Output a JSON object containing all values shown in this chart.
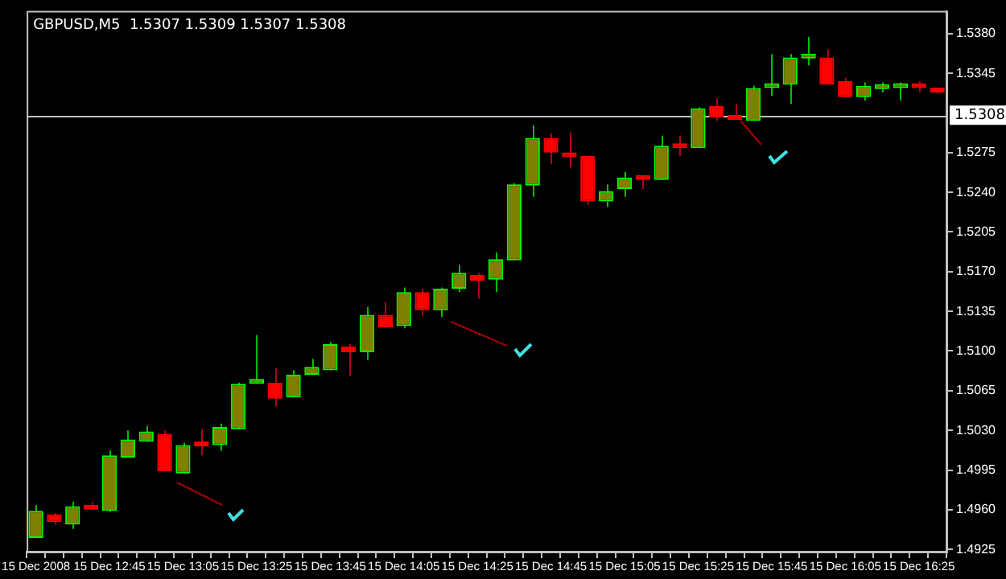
{
  "chart_data": {
    "type": "candlestick",
    "title": "GBPUSD,M5  1.5307 1.5309 1.5307 1.5308",
    "categories": [
      "15 Dec 2008",
      null,
      null,
      null,
      "15 Dec 12:45",
      null,
      null,
      null,
      "15 Dec 13:05",
      null,
      null,
      null,
      "15 Dec 13:25",
      null,
      null,
      null,
      "15 Dec 13:45",
      null,
      null,
      null,
      "15 Dec 14:05",
      null,
      null,
      null,
      "15 Dec 14:25",
      null,
      null,
      null,
      "15 Dec 14:45",
      null,
      null,
      null,
      "15 Dec 15:05",
      null,
      null,
      null,
      "15 Dec 15:25",
      null,
      null,
      null,
      "15 Dec 15:45",
      null,
      null,
      null,
      "15 Dec 16:05",
      null,
      null,
      null,
      "15 Dec 16:25",
      null
    ],
    "ohlc": [
      [
        1.4935,
        1.4964,
        1.4935,
        1.4959
      ],
      [
        1.4956,
        1.4957,
        1.4947,
        1.4949
      ],
      [
        1.4947,
        1.4967,
        1.4943,
        1.4963
      ],
      [
        1.4964,
        1.4967,
        1.496,
        1.496
      ],
      [
        1.4959,
        1.5012,
        1.4958,
        1.5008
      ],
      [
        1.5006,
        1.503,
        1.5006,
        1.5022
      ],
      [
        1.502,
        1.5034,
        1.502,
        1.5029
      ],
      [
        1.5027,
        1.503,
        1.4994,
        1.4994
      ],
      [
        1.4992,
        1.5019,
        1.4992,
        1.5017
      ],
      [
        1.5019,
        1.5031,
        1.5008,
        1.5016
      ],
      [
        1.5017,
        1.5036,
        1.5012,
        1.5033
      ],
      [
        1.5031,
        1.5072,
        1.5031,
        1.5071
      ],
      [
        1.5071,
        1.5114,
        1.5071,
        1.5073
      ],
      [
        1.5072,
        1.5085,
        1.5051,
        1.5058
      ],
      [
        1.5059,
        1.5083,
        1.5059,
        1.5079
      ],
      [
        1.5079,
        1.5093,
        1.5079,
        1.5086
      ],
      [
        1.5083,
        1.5108,
        1.5083,
        1.5106
      ],
      [
        1.5104,
        1.5106,
        1.5078,
        1.5099
      ],
      [
        1.5099,
        1.5139,
        1.5092,
        1.5132
      ],
      [
        1.5132,
        1.5143,
        1.512,
        1.5121
      ],
      [
        1.5122,
        1.5156,
        1.512,
        1.5152
      ],
      [
        1.5152,
        1.5155,
        1.5131,
        1.5136
      ],
      [
        1.5136,
        1.5156,
        1.513,
        1.5155
      ],
      [
        1.5155,
        1.5176,
        1.5152,
        1.5169
      ],
      [
        1.5167,
        1.5169,
        1.5146,
        1.5162
      ],
      [
        1.5163,
        1.5187,
        1.5152,
        1.5181
      ],
      [
        1.518,
        1.5248,
        1.518,
        1.5247
      ],
      [
        1.5246,
        1.5299,
        1.5236,
        1.5288
      ],
      [
        1.5288,
        1.5292,
        1.5265,
        1.5275
      ],
      [
        1.5275,
        1.5293,
        1.5262,
        1.5271
      ],
      [
        1.5272,
        1.5272,
        1.5229,
        1.5232
      ],
      [
        1.5232,
        1.5247,
        1.5227,
        1.5241
      ],
      [
        1.5243,
        1.5258,
        1.5236,
        1.5253
      ],
      [
        1.5253,
        1.5255,
        1.5243,
        1.5251
      ],
      [
        1.5251,
        1.529,
        1.5251,
        1.5281
      ],
      [
        1.5282,
        1.529,
        1.5272,
        1.5279
      ],
      [
        1.5279,
        1.5315,
        1.5279,
        1.5314
      ],
      [
        1.5316,
        1.5323,
        1.5303,
        1.5306
      ],
      [
        1.5306,
        1.5318,
        1.5304,
        1.5304
      ],
      [
        1.5303,
        1.5334,
        1.5303,
        1.5332
      ],
      [
        1.5332,
        1.5362,
        1.5325,
        1.5335
      ],
      [
        1.5335,
        1.5362,
        1.5318,
        1.5359
      ],
      [
        1.5358,
        1.5377,
        1.5352,
        1.536
      ],
      [
        1.5359,
        1.5366,
        1.5335,
        1.5335
      ],
      [
        1.5338,
        1.5341,
        1.5324,
        1.5324
      ],
      [
        1.5324,
        1.5337,
        1.5321,
        1.5334
      ],
      [
        1.5331,
        1.5337,
        1.5328,
        1.5334
      ],
      [
        1.5332,
        1.5337,
        1.5321,
        1.5335
      ],
      [
        1.5334,
        1.5338,
        1.5328,
        1.5332
      ],
      [
        1.5331,
        1.5331,
        1.5327,
        1.5328
      ]
    ],
    "ylim": [
      1.4923,
      1.54
    ],
    "yticks": [
      {
        "value": 1.538,
        "label": "1.5380"
      },
      1.5345,
      1.5275,
      {
        "value": 1.524,
        "label": "1.5240"
      },
      1.5205,
      {
        "value": 1.517,
        "label": "1.5170"
      },
      1.5135,
      {
        "value": 1.51,
        "label": "1.5100"
      },
      1.5065,
      {
        "value": 1.503,
        "label": "1.5030"
      },
      1.4995,
      {
        "value": 1.496,
        "label": "1.4960"
      },
      1.4925
    ],
    "ref_lines": [
      {
        "axis": "y",
        "value": 1.5308,
        "label": "1.5308",
        "color": "#c0c0c0"
      }
    ]
  }
}
